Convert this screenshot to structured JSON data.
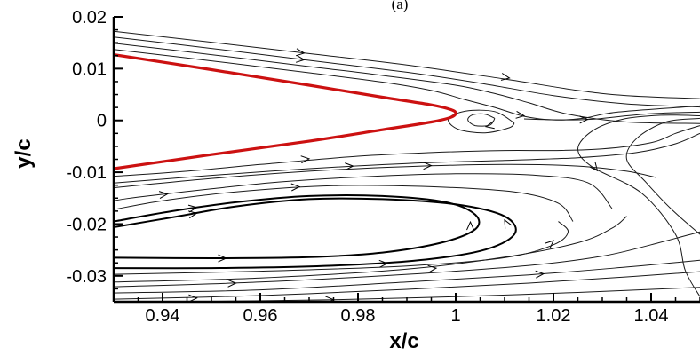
{
  "panel_label": "(a)",
  "colors": {
    "surface": "#cc1111",
    "streamline": "#1a1a1a",
    "axis": "#000000"
  },
  "chart_data": {
    "type": "streamline",
    "xlabel": "x/c",
    "ylabel": "y/c",
    "xlim": [
      0.93,
      1.05
    ],
    "ylim": [
      -0.035,
      0.02
    ],
    "grid": false,
    "xticks": [
      {
        "value": 0.94,
        "label": "0.94"
      },
      {
        "value": 0.96,
        "label": "0.96"
      },
      {
        "value": 0.98,
        "label": "0.98"
      },
      {
        "value": 1.0,
        "label": "1"
      },
      {
        "value": 1.02,
        "label": "1.02"
      },
      {
        "value": 1.04,
        "label": "1.04"
      }
    ],
    "yticks": [
      {
        "value": 0.02,
        "label": "0.02"
      },
      {
        "value": 0.01,
        "label": "0.01"
      },
      {
        "value": 0.0,
        "label": "0"
      },
      {
        "value": -0.01,
        "label": "-0.01"
      },
      {
        "value": -0.02,
        "label": "-0.02"
      },
      {
        "value": -0.03,
        "label": "-0.03"
      }
    ],
    "surface": {
      "upper": [
        [
          0.93,
          0.0127
        ],
        [
          0.95,
          0.0098
        ],
        [
          0.97,
          0.0068
        ],
        [
          0.985,
          0.0045
        ],
        [
          0.995,
          0.003
        ],
        [
          0.999,
          0.0021
        ],
        [
          1.0,
          0.0014
        ]
      ],
      "lower": [
        [
          1.0,
          0.0014
        ],
        [
          0.999,
          0.0006
        ],
        [
          0.995,
          -0.0003
        ],
        [
          0.985,
          -0.0018
        ],
        [
          0.97,
          -0.004
        ],
        [
          0.95,
          -0.0066
        ],
        [
          0.93,
          -0.0093
        ]
      ]
    },
    "streamlines": [
      {
        "points": [
          [
            0.93,
            0.0172
          ],
          [
            0.95,
            0.0151
          ],
          [
            0.97,
            0.0129
          ],
          [
            0.99,
            0.0107
          ],
          [
            1.01,
            0.008
          ],
          [
            1.025,
            0.0058
          ],
          [
            1.035,
            0.0048
          ],
          [
            1.05,
            0.0042
          ]
        ],
        "arrows": [
          [
            0.969,
            0.013,
            1
          ],
          [
            1.011,
            0.0082,
            1
          ]
        ]
      },
      {
        "points": [
          [
            0.93,
            0.0161
          ],
          [
            0.95,
            0.0139
          ],
          [
            0.97,
            0.0116
          ],
          [
            0.99,
            0.0093
          ],
          [
            1.005,
            0.0072
          ],
          [
            1.02,
            0.0048
          ],
          [
            1.035,
            0.0032
          ],
          [
            1.05,
            0.0026
          ]
        ],
        "arrows": [
          [
            0.969,
            0.0117,
            1
          ]
        ]
      },
      {
        "points": [
          [
            0.93,
            0.0149
          ],
          [
            0.95,
            0.0127
          ],
          [
            0.97,
            0.0104
          ],
          [
            0.985,
            0.0087
          ],
          [
            1.0,
            0.0068
          ],
          [
            1.008,
            0.0052
          ],
          [
            1.015,
            0.0034
          ],
          [
            1.023,
            0.0012
          ],
          [
            1.035,
            -0.0003
          ],
          [
            1.05,
            -0.0006
          ]
        ],
        "arrows": []
      },
      {
        "points": [
          [
            0.93,
            0.0137
          ],
          [
            0.95,
            0.0115
          ],
          [
            0.97,
            0.0092
          ],
          [
            0.985,
            0.0074
          ],
          [
            0.995,
            0.0058
          ],
          [
            1.002,
            0.004
          ],
          [
            1.008,
            0.0025
          ],
          [
            1.014,
            0.0008
          ],
          [
            1.02,
            0.0001
          ],
          [
            1.026,
            0.0004
          ],
          [
            1.033,
            0.0016
          ],
          [
            1.05,
            0.0028
          ]
        ],
        "arrows": [
          [
            1.014,
            0.0009,
            1
          ]
        ]
      },
      {
        "points": [
          [
            1.012,
            -0.0005
          ],
          [
            1.008,
            0.0017
          ],
          [
            1.002,
            0.0018
          ],
          [
            0.9985,
            0.0003
          ],
          [
            1.0005,
            -0.0017
          ],
          [
            1.006,
            -0.0024
          ],
          [
            1.011,
            -0.0014
          ],
          [
            1.012,
            -0.0005
          ]
        ],
        "arrows": [
          [
            1.0062,
            -0.0012,
            -1
          ]
        ]
      },
      {
        "points": [
          [
            1.008,
            0.0004
          ],
          [
            1.006,
            0.0012
          ],
          [
            1.0035,
            0.0011
          ],
          [
            1.0025,
            0.0001
          ],
          [
            1.004,
            -0.001
          ],
          [
            1.007,
            -0.0009
          ],
          [
            1.008,
            0.0004
          ]
        ],
        "arrows": []
      },
      {
        "points": [
          [
            1.05,
            0.0016
          ],
          [
            1.045,
            0.0015
          ],
          [
            1.04,
            0.0013
          ],
          [
            1.035,
            0.0009
          ],
          [
            1.029,
            0.0003
          ],
          [
            1.024,
            0.0001
          ],
          [
            1.017,
            0.0002
          ],
          [
            1.014,
            0.0003
          ]
        ],
        "arrows": [
          [
            1.027,
            0.0002,
            -1
          ]
        ]
      },
      {
        "points": [
          [
            1.05,
            0.0009
          ],
          [
            1.042,
            0.001
          ],
          [
            1.034,
            0.0002
          ],
          [
            1.028,
            -0.002
          ],
          [
            1.025,
            -0.0055
          ],
          [
            1.028,
            -0.009
          ],
          [
            1.038,
            -0.014
          ],
          [
            1.045,
            -0.022
          ],
          [
            1.047,
            -0.029
          ],
          [
            1.05,
            -0.034
          ]
        ],
        "arrows": [
          [
            1.029,
            -0.0097,
            1
          ]
        ]
      },
      {
        "points": [
          [
            1.05,
            0.0004
          ],
          [
            1.043,
            -0.0003
          ],
          [
            1.037,
            -0.0035
          ],
          [
            1.035,
            -0.0075
          ],
          [
            1.039,
            -0.012
          ],
          [
            1.044,
            -0.017
          ],
          [
            1.05,
            -0.022
          ]
        ],
        "arrows": []
      },
      {
        "points": [
          [
            1.05,
            -0.001
          ],
          [
            1.045,
            -0.0025
          ],
          [
            1.04,
            -0.0043
          ],
          [
            1.03,
            -0.0055
          ],
          [
            1.02,
            -0.0058
          ],
          [
            1.01,
            -0.0058
          ],
          [
            0.995,
            -0.0062
          ],
          [
            0.98,
            -0.0069
          ],
          [
            0.96,
            -0.0085
          ],
          [
            0.945,
            -0.0098
          ],
          [
            0.93,
            -0.0108
          ]
        ],
        "arrows": [
          [
            0.97,
            -0.0074,
            -1
          ]
        ]
      },
      {
        "points": [
          [
            1.05,
            -0.0025
          ],
          [
            1.045,
            -0.0045
          ],
          [
            1.037,
            -0.0062
          ],
          [
            1.025,
            -0.0072
          ],
          [
            1.01,
            -0.0077
          ],
          [
            0.99,
            -0.0083
          ],
          [
            0.97,
            -0.0093
          ],
          [
            0.95,
            -0.0106
          ],
          [
            0.93,
            -0.0121
          ]
        ],
        "arrows": [
          [
            0.979,
            -0.0088,
            -1
          ]
        ]
      },
      {
        "points": [
          [
            1.041,
            -0.011
          ],
          [
            1.035,
            -0.0098
          ],
          [
            1.025,
            -0.0088
          ],
          [
            1.01,
            -0.0085
          ],
          [
            0.99,
            -0.0089
          ],
          [
            0.97,
            -0.0098
          ],
          [
            0.95,
            -0.0112
          ],
          [
            0.93,
            -0.013
          ]
        ],
        "arrows": [
          [
            0.995,
            -0.0087,
            -1
          ]
        ]
      },
      {
        "points": [
          [
            1.032,
            -0.017
          ],
          [
            1.027,
            -0.012
          ],
          [
            1.015,
            -0.0105
          ],
          [
            1.0,
            -0.0103
          ],
          [
            0.985,
            -0.0107
          ],
          [
            0.965,
            -0.0118
          ],
          [
            0.95,
            -0.0132
          ],
          [
            0.935,
            -0.0148
          ],
          [
            0.93,
            -0.0155
          ]
        ],
        "arrows": [
          [
            0.941,
            -0.0142,
            -1
          ]
        ]
      },
      {
        "points": [
          [
            1.024,
            -0.0195
          ],
          [
            1.021,
            -0.016
          ],
          [
            1.012,
            -0.0138
          ],
          [
            0.995,
            -0.0128
          ],
          [
            0.975,
            -0.0126
          ],
          [
            0.955,
            -0.0138
          ],
          [
            0.94,
            -0.0155
          ],
          [
            0.93,
            -0.0172
          ]
        ],
        "arrows": [
          [
            0.968,
            -0.0128,
            -1
          ]
        ]
      },
      {
        "points": [
          [
            0.93,
            -0.0265
          ],
          [
            0.95,
            -0.0266
          ],
          [
            0.97,
            -0.0264
          ],
          [
            0.985,
            -0.0255
          ],
          [
            0.997,
            -0.0236
          ],
          [
            1.004,
            -0.021
          ],
          [
            1.004,
            -0.0182
          ],
          [
            0.998,
            -0.0158
          ],
          [
            0.985,
            -0.0146
          ],
          [
            0.97,
            -0.0146
          ],
          [
            0.955,
            -0.0158
          ],
          [
            0.942,
            -0.0175
          ],
          [
            0.93,
            -0.0195
          ]
        ],
        "arrows": [
          [
            0.953,
            -0.0266,
            1
          ],
          [
            1.003,
            -0.0196,
            1
          ],
          [
            0.947,
            -0.0168,
            -1
          ]
        ],
        "bold": true
      },
      {
        "points": [
          [
            0.93,
            -0.0285
          ],
          [
            0.95,
            -0.0285
          ],
          [
            0.97,
            -0.0282
          ],
          [
            0.99,
            -0.0272
          ],
          [
            1.005,
            -0.0252
          ],
          [
            1.012,
            -0.022
          ],
          [
            1.01,
            -0.0185
          ],
          [
            1.0,
            -0.0162
          ],
          [
            0.985,
            -0.0152
          ],
          [
            0.97,
            -0.0152
          ],
          [
            0.955,
            -0.0166
          ],
          [
            0.942,
            -0.0187
          ],
          [
            0.93,
            -0.0206
          ]
        ],
        "arrows": [
          [
            0.986,
            -0.0276,
            1
          ],
          [
            1.01,
            -0.0192,
            1
          ],
          [
            0.947,
            -0.0179,
            -1
          ]
        ],
        "bold": true
      },
      {
        "points": [
          [
            0.93,
            -0.0297
          ],
          [
            0.96,
            -0.0291
          ],
          [
            0.99,
            -0.0281
          ],
          [
            1.01,
            -0.0265
          ],
          [
            1.02,
            -0.024
          ],
          [
            1.023,
            -0.0215
          ],
          [
            1.021,
            -0.0195
          ]
        ],
        "arrows": [
          [
            1.02,
            -0.0232,
            1
          ]
        ]
      },
      {
        "points": [
          [
            0.93,
            -0.0312
          ],
          [
            0.96,
            -0.0304
          ],
          [
            0.99,
            -0.0287
          ],
          [
            1.01,
            -0.0264
          ],
          [
            1.025,
            -0.0236
          ],
          [
            1.032,
            -0.0208
          ],
          [
            1.035,
            -0.0185
          ]
        ],
        "arrows": [
          [
            0.996,
            -0.0285,
            1
          ]
        ]
      },
      {
        "points": [
          [
            0.93,
            -0.0321
          ],
          [
            0.96,
            -0.0312
          ],
          [
            0.99,
            -0.0297
          ],
          [
            1.015,
            -0.028
          ],
          [
            1.03,
            -0.0262
          ],
          [
            1.04,
            -0.024
          ],
          [
            1.05,
            -0.0215
          ]
        ],
        "arrows": [
          [
            0.955,
            -0.0314,
            1
          ]
        ]
      },
      {
        "points": [
          [
            0.93,
            -0.0333
          ],
          [
            0.96,
            -0.0327
          ],
          [
            0.99,
            -0.0312
          ],
          [
            1.015,
            -0.0298
          ],
          [
            1.035,
            -0.0283
          ],
          [
            1.05,
            -0.027
          ]
        ],
        "arrows": [
          [
            1.018,
            -0.0296,
            1
          ]
        ]
      },
      {
        "points": [
          [
            0.93,
            -0.0345
          ],
          [
            0.96,
            -0.0338
          ],
          [
            0.99,
            -0.0326
          ],
          [
            1.015,
            -0.0314
          ],
          [
            1.035,
            -0.0302
          ],
          [
            1.05,
            -0.0292
          ]
        ],
        "arrows": [
          [
            0.947,
            -0.0343,
            1
          ]
        ]
      },
      {
        "points": [
          [
            0.945,
            -0.035
          ],
          [
            0.975,
            -0.0346
          ],
          [
            1.0,
            -0.034
          ],
          [
            1.025,
            -0.0332
          ],
          [
            1.05,
            -0.0322
          ]
        ],
        "arrows": [
          [
            0.975,
            -0.0346,
            1
          ]
        ]
      }
    ]
  }
}
